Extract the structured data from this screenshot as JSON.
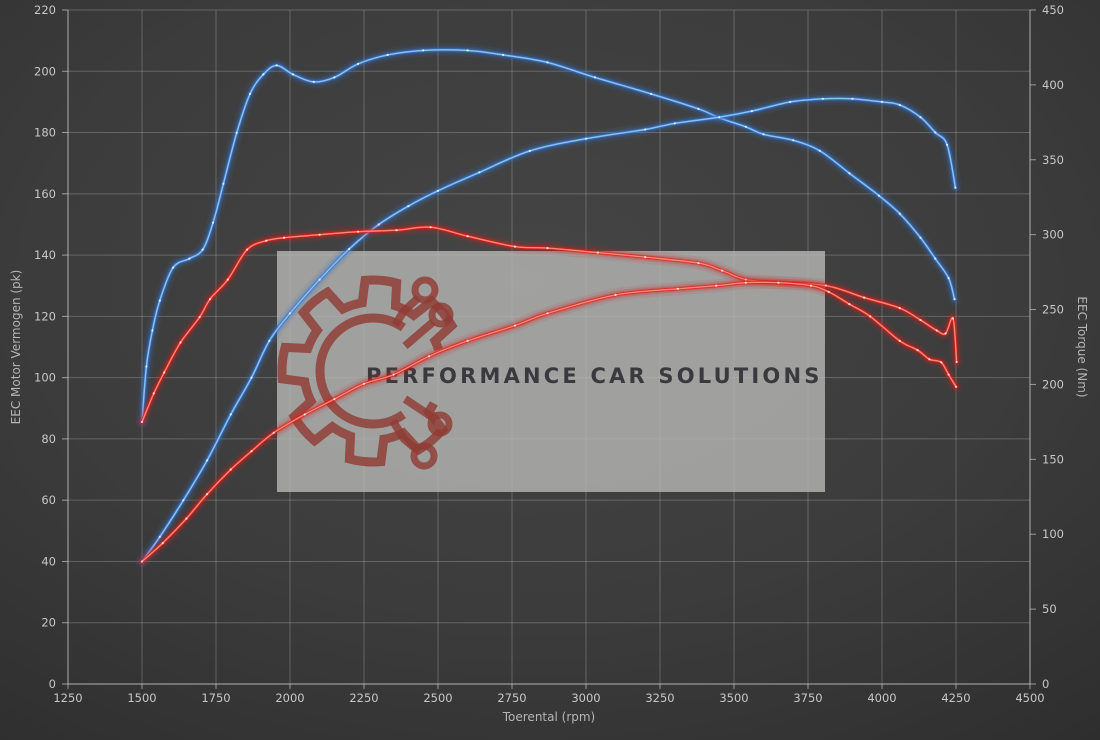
{
  "watermark": {
    "text": "PERFORMANCE CAR SOLUTIONS",
    "logo": "gear-circuit-icon"
  },
  "colors": {
    "background_center": "#454545",
    "background_edge": "#2e2e2e",
    "grid_line": "rgba(210,210,210,0.28)",
    "axis_line": "rgba(215,215,215,0.62)",
    "tick_label": "#c7c7c7",
    "axis_title": "#b5b5b5",
    "blue_main": "#3577cd",
    "blue_core": "#8ec0f2",
    "red_main": "#d92019",
    "red_core": "#ff8577",
    "marker": "rgba(255,255,255,0.75)",
    "watermark_bg": "rgba(184,184,182,0.8)",
    "watermark_text": "#3a3a3e",
    "watermark_logo": "#8f3c33"
  },
  "chart_data": {
    "type": "line",
    "title": "",
    "x_axis": {
      "label": "Toerental (rpm)",
      "min": 1250,
      "max": 4500,
      "tick_step": 250
    },
    "y_axis_left": {
      "label": "EEC Motor Vermogen (pk)",
      "min": 0,
      "max": 220,
      "tick_step": 20
    },
    "y_axis_right": {
      "label": "EEC Torque (Nm)",
      "min": 0,
      "max": 450,
      "tick_step": 50
    },
    "grid": true,
    "legend": "none",
    "series": [
      {
        "name": "blue-torque",
        "axis": "right",
        "unit": "Nm",
        "color_key": "blue",
        "points": [
          [
            1500,
            175
          ],
          [
            1515,
            212
          ],
          [
            1535,
            236
          ],
          [
            1560,
            256
          ],
          [
            1605,
            278
          ],
          [
            1660,
            284
          ],
          [
            1705,
            290
          ],
          [
            1740,
            308
          ],
          [
            1775,
            334
          ],
          [
            1820,
            368
          ],
          [
            1865,
            394
          ],
          [
            1910,
            407
          ],
          [
            1955,
            413
          ],
          [
            2010,
            407
          ],
          [
            2080,
            402
          ],
          [
            2150,
            405
          ],
          [
            2230,
            414
          ],
          [
            2330,
            420
          ],
          [
            2450,
            423
          ],
          [
            2600,
            423
          ],
          [
            2720,
            420
          ],
          [
            2870,
            415
          ],
          [
            3030,
            405
          ],
          [
            3220,
            394
          ],
          [
            3380,
            384
          ],
          [
            3450,
            378
          ],
          [
            3540,
            372
          ],
          [
            3600,
            367
          ],
          [
            3700,
            363
          ],
          [
            3790,
            356
          ],
          [
            3890,
            341
          ],
          [
            3990,
            326
          ],
          [
            4060,
            314
          ],
          [
            4130,
            298
          ],
          [
            4180,
            284
          ],
          [
            4225,
            271
          ],
          [
            4245,
            257
          ]
        ]
      },
      {
        "name": "blue-power",
        "axis": "left",
        "unit": "pk",
        "color_key": "blue",
        "points": [
          [
            1500,
            40
          ],
          [
            1560,
            48
          ],
          [
            1640,
            60
          ],
          [
            1720,
            73
          ],
          [
            1800,
            88
          ],
          [
            1870,
            100
          ],
          [
            1930,
            112
          ],
          [
            2000,
            121
          ],
          [
            2100,
            132
          ],
          [
            2200,
            142
          ],
          [
            2300,
            150
          ],
          [
            2400,
            156
          ],
          [
            2500,
            161
          ],
          [
            2640,
            167
          ],
          [
            2810,
            174
          ],
          [
            3000,
            178
          ],
          [
            3200,
            181
          ],
          [
            3300,
            183
          ],
          [
            3450,
            185
          ],
          [
            3560,
            187
          ],
          [
            3690,
            190
          ],
          [
            3800,
            191
          ],
          [
            3900,
            191
          ],
          [
            4000,
            190
          ],
          [
            4060,
            189
          ],
          [
            4130,
            185
          ],
          [
            4180,
            180
          ],
          [
            4220,
            176
          ],
          [
            4248,
            162
          ]
        ]
      },
      {
        "name": "red-torque",
        "axis": "right",
        "unit": "Nm",
        "color_key": "red",
        "points": [
          [
            1500,
            175
          ],
          [
            1540,
            194
          ],
          [
            1575,
            208
          ],
          [
            1630,
            228
          ],
          [
            1695,
            245
          ],
          [
            1730,
            257
          ],
          [
            1790,
            270
          ],
          [
            1855,
            290
          ],
          [
            1920,
            296
          ],
          [
            1980,
            298
          ],
          [
            2100,
            300
          ],
          [
            2230,
            302
          ],
          [
            2360,
            303
          ],
          [
            2475,
            305
          ],
          [
            2600,
            299
          ],
          [
            2760,
            292
          ],
          [
            2870,
            291
          ],
          [
            3040,
            288
          ],
          [
            3200,
            285
          ],
          [
            3380,
            281
          ],
          [
            3460,
            276
          ],
          [
            3540,
            270
          ],
          [
            3650,
            268
          ],
          [
            3810,
            266
          ],
          [
            3940,
            258
          ],
          [
            4060,
            251
          ],
          [
            4130,
            243
          ],
          [
            4185,
            236
          ],
          [
            4215,
            234
          ],
          [
            4240,
            244
          ],
          [
            4252,
            215
          ]
        ]
      },
      {
        "name": "red-power",
        "axis": "left",
        "unit": "pk",
        "color_key": "red",
        "points": [
          [
            1500,
            40
          ],
          [
            1570,
            46
          ],
          [
            1650,
            54
          ],
          [
            1720,
            62
          ],
          [
            1800,
            70
          ],
          [
            1870,
            76
          ],
          [
            1945,
            82
          ],
          [
            2050,
            88
          ],
          [
            2150,
            93
          ],
          [
            2250,
            98
          ],
          [
            2350,
            101
          ],
          [
            2470,
            107
          ],
          [
            2600,
            112
          ],
          [
            2760,
            117
          ],
          [
            2870,
            121
          ],
          [
            3100,
            127
          ],
          [
            3310,
            129
          ],
          [
            3440,
            130
          ],
          [
            3540,
            131
          ],
          [
            3650,
            131
          ],
          [
            3760,
            130
          ],
          [
            3820,
            128
          ],
          [
            3890,
            124
          ],
          [
            3960,
            120
          ],
          [
            4060,
            112
          ],
          [
            4120,
            109
          ],
          [
            4160,
            106
          ],
          [
            4200,
            105
          ],
          [
            4225,
            101
          ],
          [
            4250,
            97
          ]
        ]
      }
    ]
  }
}
